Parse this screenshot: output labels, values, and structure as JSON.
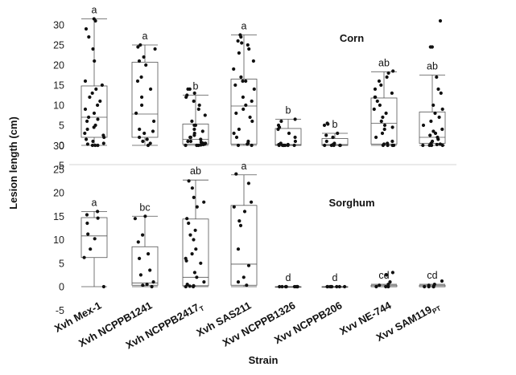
{
  "chart_data": {
    "type": "box",
    "xlabel": "Strain",
    "ylabel": "Lesion length (cm)",
    "categories": [
      "Xvh Mex-1",
      "Xvh NCPPB1241",
      "Xvh NCPPB2417",
      "Xvh SAS211",
      "Xvv NCPPB1326",
      "Xvv NCPPB206",
      "Xvv NE-744",
      "Xvv SAM119"
    ],
    "category_superscripts": [
      "",
      "",
      "T",
      "",
      "",
      "",
      "",
      "PT"
    ],
    "yticks": [
      "30",
      "25",
      "20",
      "15",
      "10",
      "5",
      "0",
      "-5"
    ],
    "ylim": [
      -5,
      32
    ],
    "panels": [
      {
        "title": "Corn",
        "boxes": [
          {
            "min": 0,
            "q1": 2,
            "median": 7,
            "q3": 14.8,
            "max": 31.5,
            "letter": "a",
            "points": [
              31.5,
              31,
              29,
              27,
              24,
              21,
              16,
              15,
              14,
              13,
              12,
              11,
              10,
              9,
              8,
              7,
              6.5,
              6,
              5,
              4.5,
              4,
              3,
              2.5,
              2,
              1.5,
              1,
              0.5,
              0.3,
              0,
              0,
              0
            ]
          },
          {
            "min": 0,
            "q1": 2,
            "median": 7.8,
            "q3": 20.7,
            "max": 25,
            "letter": "a",
            "points": [
              25,
              24.5,
              24,
              22,
              21,
              20,
              17,
              16,
              14,
              12,
              10,
              8,
              6,
              4,
              3.5,
              3,
              2,
              1.5,
              1,
              0.5,
              0
            ]
          },
          {
            "min": 0,
            "q1": 0.3,
            "median": 1.5,
            "q3": 5.3,
            "max": 12.5,
            "letter": "b",
            "points": [
              14,
              14,
              13,
              12.5,
              12,
              11,
              10,
              9,
              7.5,
              6,
              5,
              5,
              4,
              3.5,
              3,
              2.5,
              2,
              2,
              1.5,
              1,
              1,
              0.8,
              0.5,
              0.5,
              0.3,
              0.2,
              0.1,
              0,
              0,
              0
            ]
          },
          {
            "min": 0,
            "q1": 0.3,
            "median": 9.8,
            "q3": 16.5,
            "max": 27.5,
            "letter": "a",
            "points": [
              27.5,
              27,
              26,
              25.5,
              25,
              24,
              23,
              21,
              19,
              17,
              16,
              16,
              15,
              14,
              12,
              11,
              10,
              9,
              8,
              7,
              6,
              4,
              3,
              2,
              1,
              0.5,
              0.3,
              0,
              0
            ]
          },
          {
            "min": 0,
            "q1": 0,
            "median": 0.2,
            "q3": 4.2,
            "max": 6.5,
            "letter": "b",
            "points": [
              6.5,
              6,
              5,
              4.5,
              4,
              3,
              2,
              1,
              0.5,
              0.2,
              0.2,
              0,
              0,
              0,
              0,
              0,
              0,
              0
            ]
          },
          {
            "min": 0,
            "q1": 0,
            "median": 0.2,
            "q3": 1.7,
            "max": 3,
            "letter": "b",
            "points": [
              5.5,
              5.3,
              5,
              3,
              2.5,
              2,
              1,
              0.5,
              0.2,
              0,
              0,
              0,
              0,
              0
            ]
          },
          {
            "min": 0,
            "q1": 0.3,
            "median": 5.5,
            "q3": 11.8,
            "max": 18.3,
            "letter": "ab",
            "points": [
              18.5,
              18,
              17,
              16,
              15,
              14,
              13,
              12,
              12,
              11,
              10,
              9,
              8,
              7,
              6,
              5,
              4.5,
              4,
              3,
              2,
              1,
              0.5,
              0.3,
              0,
              0,
              0,
              0
            ]
          },
          {
            "min": 0,
            "q1": 0.5,
            "median": 2,
            "q3": 8.3,
            "max": 17.5,
            "letter": "ab",
            "points": [
              31,
              24.5,
              24.5,
              17,
              14,
              13,
              10,
              9,
              8,
              7,
              6,
              5,
              4,
              3.5,
              3,
              2.5,
              2,
              1.5,
              1,
              0.5,
              0.3,
              0.2,
              0,
              0,
              0,
              0
            ]
          }
        ]
      },
      {
        "title": "Sorghum",
        "boxes": [
          {
            "min": 0,
            "q1": 6.2,
            "median": 10.8,
            "q3": 14.7,
            "max": 16,
            "letter": "a",
            "points": [
              16,
              15.3,
              14.6,
              13.5,
              11.2,
              10.2,
              8,
              6.2,
              0
            ]
          },
          {
            "min": 0,
            "q1": 0.3,
            "median": 0.8,
            "q3": 8.5,
            "max": 15,
            "letter": "bc",
            "points": [
              15,
              14.5,
              11,
              9.5,
              7,
              6,
              3.5,
              2.5,
              1,
              0.5,
              0.3,
              0
            ]
          },
          {
            "min": 0,
            "q1": 0.2,
            "median": 2,
            "q3": 14.4,
            "max": 22.7,
            "letter": "ab",
            "points": [
              22.5,
              21,
              19,
              18,
              17,
              14.5,
              13.5,
              12,
              11,
              10,
              8,
              7,
              6,
              5.5,
              5,
              3,
              2,
              1,
              0.5,
              0.2,
              0.1,
              0,
              0
            ]
          },
          {
            "min": 0,
            "q1": 0.3,
            "median": 4.8,
            "q3": 17.3,
            "max": 23.8,
            "letter": "a",
            "points": [
              24,
              22,
              18,
              17,
              16,
              14,
              13,
              8,
              4.5,
              2,
              1,
              0.3
            ]
          },
          {
            "min": 0,
            "q1": 0,
            "median": 0,
            "q3": 0,
            "max": 0,
            "letter": "d",
            "points": [
              0,
              0,
              0,
              0,
              0,
              0,
              0,
              0
            ]
          },
          {
            "min": 0,
            "q1": 0,
            "median": 0,
            "q3": 0,
            "max": 0,
            "letter": "d",
            "points": [
              0,
              0,
              0,
              0,
              0,
              0,
              0,
              0
            ]
          },
          {
            "min": 0,
            "q1": 0,
            "median": 0,
            "q3": 0.3,
            "max": 0.5,
            "letter": "cd",
            "points": [
              3,
              2.5,
              1,
              0.5,
              0.3,
              0,
              0,
              0
            ]
          },
          {
            "min": 0,
            "q1": 0,
            "median": 0,
            "q3": 0.3,
            "max": 0.5,
            "letter": "cd",
            "points": [
              1.2,
              0.5,
              0.3,
              0,
              0,
              0,
              0
            ]
          }
        ]
      }
    ]
  }
}
